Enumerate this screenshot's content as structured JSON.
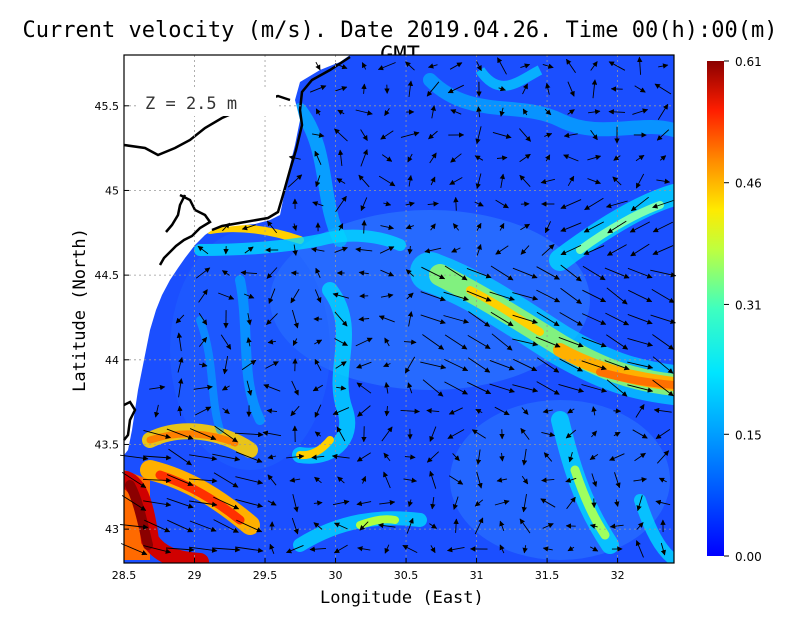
{
  "title": "Current velocity (m/s). Date 2019.04.26. Time 00(h):00(m) GMT",
  "depth_label": "Z = 2.5 m",
  "xlabel": "Longitude (East)",
  "ylabel": "Latitude (North)",
  "colors": {
    "ocean_low": "#1b4fff",
    "accent_high": "#a00000",
    "coastline": "#000000",
    "arrows": "#000000"
  },
  "chart_data": {
    "type": "heatmap",
    "xlim": [
      28.5,
      32.4
    ],
    "ylim": [
      42.8,
      45.8
    ],
    "x_ticks": [
      "28.5",
      "29",
      "29.5",
      "30",
      "30.5",
      "31",
      "31.5",
      "32"
    ],
    "x_tick_values": [
      28.5,
      29,
      29.5,
      30,
      30.5,
      31,
      31.5,
      32
    ],
    "y_ticks": [
      "43",
      "43.5",
      "44",
      "44.5",
      "45",
      "45.5"
    ],
    "y_tick_values": [
      43,
      43.5,
      44,
      44.5,
      45,
      45.5
    ],
    "grid": true,
    "colorbar": {
      "min": 0.0,
      "max": 0.61,
      "tick_labels": [
        "0.00",
        "0.15",
        "0.31",
        "0.46",
        "0.61"
      ],
      "tick_values": [
        0.0,
        0.15,
        0.31,
        0.46,
        0.61
      ]
    },
    "high_velocity_features": [
      {
        "lon": 28.65,
        "lat": 43.15,
        "speed": 0.61
      },
      {
        "lon": 28.9,
        "lat": 42.9,
        "speed": 0.55
      },
      {
        "lon": 29.2,
        "lat": 43.1,
        "speed": 0.5
      },
      {
        "lon": 29.0,
        "lat": 43.5,
        "speed": 0.4
      },
      {
        "lon": 31.0,
        "lat": 44.45,
        "speed": 0.45
      },
      {
        "lon": 31.4,
        "lat": 44.2,
        "speed": 0.4
      },
      {
        "lon": 31.8,
        "lat": 43.95,
        "speed": 0.5
      },
      {
        "lon": 32.1,
        "lat": 43.85,
        "speed": 0.55
      },
      {
        "lon": 29.5,
        "lat": 44.8,
        "speed": 0.4
      },
      {
        "lon": 29.9,
        "lat": 43.5,
        "speed": 0.35
      },
      {
        "lon": 31.7,
        "lat": 43.1,
        "speed": 0.35
      },
      {
        "lon": 32.0,
        "lat": 44.8,
        "speed": 0.3
      }
    ]
  }
}
